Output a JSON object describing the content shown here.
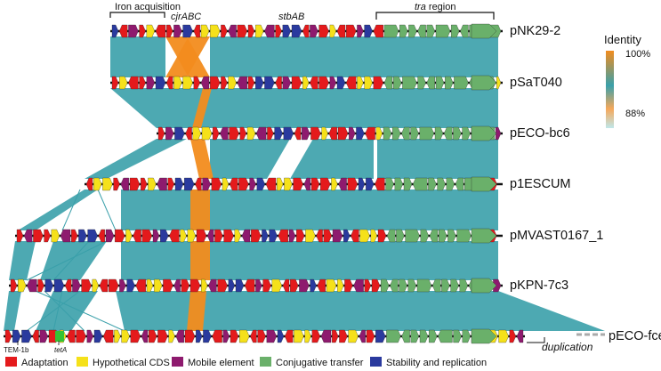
{
  "colors": {
    "adaptation": "#e41a1c",
    "hypothetical": "#f5e11a",
    "mobile": "#8e1a6e",
    "conjugative": "#6ab06a",
    "stability": "#2a3a9e",
    "identity_high": "#f28c1e",
    "identity_low": "#8fd3d6",
    "synteny": "#3aa0aa",
    "backbone": "#111111"
  },
  "regions": {
    "iron": "Iron acquisition",
    "cjr": "cjrABC",
    "stb": "stbAB",
    "tra_italic": "tra",
    "tra_rest": " region"
  },
  "plasmids": [
    "pNK29-2",
    "pSaT040",
    "pECO-bc6",
    "p1ESCUM",
    "pMVAST0167_1",
    "pKPN-7c3",
    "pECO-fce"
  ],
  "gene_labels": {
    "tem": "TEM-1b",
    "tet": "tetA"
  },
  "duplication_label": "duplication",
  "identity": {
    "title": "Identity",
    "max": "100%",
    "min": "88%"
  },
  "legend": [
    {
      "key": "adaptation",
      "label": "Adaptation"
    },
    {
      "key": "hypothetical",
      "label": "Hypothetical CDS"
    },
    {
      "key": "mobile",
      "label": "Mobile element"
    },
    {
      "key": "conjugative",
      "label": "Conjugative transfer"
    },
    {
      "key": "stability",
      "label": "Stability and replication"
    }
  ]
}
